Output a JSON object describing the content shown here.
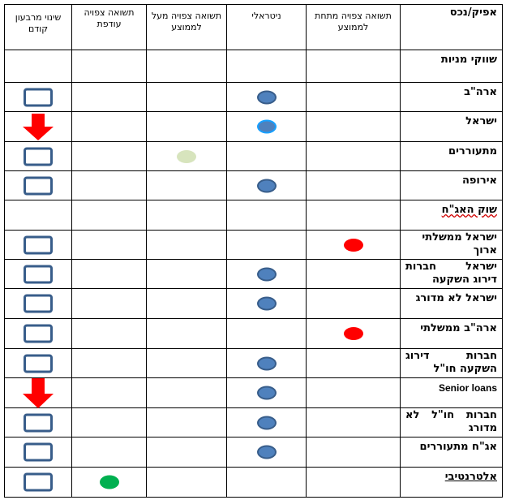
{
  "headers": {
    "asset": "אפיק/נכס",
    "below_avg": "תשואה צפויה מתחת לממוצע",
    "neutral": "ניטראלי",
    "above_avg": "תשואה צפויה מעל לממוצע",
    "excess": "תשואה צפויה עודפת",
    "change": "שינוי מרבעון קודם"
  },
  "sections": {
    "equity": "שווקי מניות",
    "bonds": "שוק האג\"ח",
    "alternative": "אלטרנטיבי"
  },
  "rows": {
    "usa": "ארה\"ב",
    "israel": "ישראל",
    "emerging": "מתעוררים",
    "europe": "אירופה",
    "il_gov_long": "ישראל ממשלתי ארוך",
    "il_gov_long_a": "ישראל ממשלתי",
    "il_gov_long_b": "ארוך",
    "il_ig": "ישראל חברות דירוג השקעה",
    "il_ig_a": "ישראל חברות",
    "il_ig_b": "דירוג השקעה",
    "il_unrated": "ישראל לא מדורג",
    "us_gov": "ארה\"ב ממשלתי",
    "global_ig": "חברות דירוג השקעה חו\"ל",
    "global_ig_a": "חברות דירוג",
    "global_ig_b": "השקעה חו\"ל",
    "senior_loans": "Senior loans",
    "global_unrated": "חברות חו\"ל לא מדורג",
    "global_unrated_a": "חברות חו\"ל לא",
    "global_unrated_b": "מדורג",
    "em_bonds": "אג\"ח מתעוררים"
  },
  "legend_colors": {
    "neutral": "#4f81bd",
    "below_avg": "#ff0000",
    "above_avg": "#d7e4bd",
    "excess": "#00b050",
    "arrow": "#ff0000",
    "box": "#385d8a"
  },
  "ratings": [
    {
      "row": "usa",
      "position": "neutral",
      "change": "unchanged"
    },
    {
      "row": "israel",
      "position": "neutral",
      "change": "down"
    },
    {
      "row": "emerging",
      "position": "above_avg",
      "change": "unchanged"
    },
    {
      "row": "europe",
      "position": "neutral",
      "change": "unchanged"
    },
    {
      "row": "il_gov_long",
      "position": "below_avg",
      "change": "unchanged"
    },
    {
      "row": "il_ig",
      "position": "neutral",
      "change": "unchanged"
    },
    {
      "row": "il_unrated",
      "position": "neutral",
      "change": "unchanged"
    },
    {
      "row": "us_gov",
      "position": "below_avg",
      "change": "unchanged"
    },
    {
      "row": "global_ig",
      "position": "neutral",
      "change": "unchanged"
    },
    {
      "row": "senior_loans",
      "position": "neutral",
      "change": "down"
    },
    {
      "row": "global_unrated",
      "position": "neutral",
      "change": "unchanged"
    },
    {
      "row": "em_bonds",
      "position": "neutral",
      "change": "unchanged"
    },
    {
      "row": "alternative",
      "position": "excess",
      "change": "unchanged"
    }
  ]
}
